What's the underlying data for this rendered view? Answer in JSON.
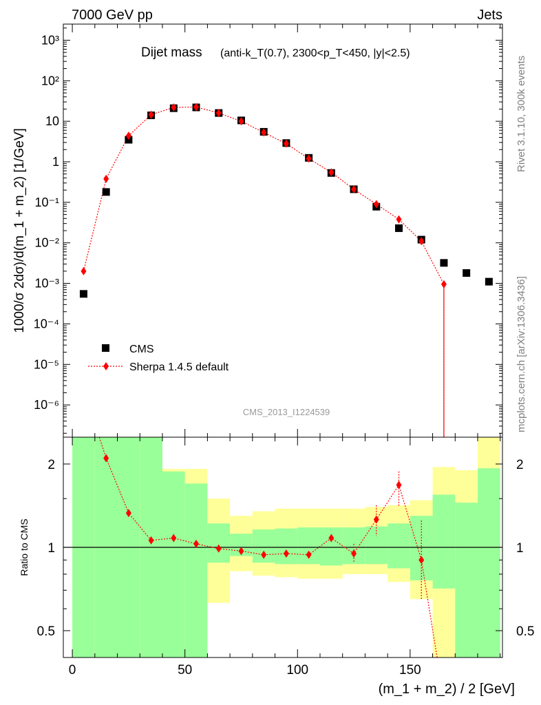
{
  "header": {
    "left": "7000 GeV pp",
    "right": "Jets"
  },
  "side": {
    "rivet": "Rivet 3.1.10,  300k events",
    "mcplots": "mcplots.cern.ch [arXiv:1306.3436]"
  },
  "colors": {
    "cms": "#000000",
    "mc": "#ff0000",
    "band_inner": "#99ff99",
    "band_outer": "#ffff99"
  },
  "chart_data": [
    {
      "type": "scatter",
      "title_main": "Dijet mass",
      "title_sub": "(anti-k_T(0.7), 2300<p_T<450, |y|<2.5)",
      "ylabel": "1000/σ 2dσ)/d(m_1 + m_2) [1/GeV]",
      "watermark": "CMS_2013_I1224539",
      "y_scale": "log",
      "xlim": [
        -4,
        191
      ],
      "ylim": [
        1.6e-07,
        2500
      ],
      "y_ticks": [
        {
          "label": "10³",
          "value": 1000
        },
        {
          "label": "10²",
          "value": 100
        },
        {
          "label": "10",
          "value": 10
        },
        {
          "label": "1",
          "value": 1
        },
        {
          "label": "10⁻¹",
          "value": 0.1
        },
        {
          "label": "10⁻²",
          "value": 0.01
        },
        {
          "label": "10⁻³",
          "value": 0.001
        },
        {
          "label": "10⁻⁴",
          "value": 0.0001
        },
        {
          "label": "10⁻⁵",
          "value": 1e-05
        },
        {
          "label": "10⁻⁶",
          "value": 1e-06
        }
      ],
      "legend_position": "bottom-left",
      "series": [
        {
          "name": "CMS",
          "style": "markers",
          "x": [
            5,
            15,
            25,
            35,
            45,
            55,
            65,
            75,
            85,
            95,
            105,
            115,
            125,
            135,
            145,
            155,
            165,
            175,
            185
          ],
          "y": [
            0.00055,
            0.18,
            3.5,
            14,
            21,
            22,
            16,
            10.5,
            5.5,
            2.9,
            1.25,
            0.53,
            0.21,
            0.078,
            0.023,
            0.012,
            0.0032,
            0.0018,
            0.0011
          ]
        },
        {
          "name": "Sherpa 1.4.5 default",
          "style": "line-diamond",
          "x": [
            5,
            15,
            25,
            35,
            45,
            55,
            65,
            75,
            85,
            95,
            105,
            115,
            125,
            135,
            145,
            155,
            165
          ],
          "y": [
            0.002,
            0.38,
            4.4,
            14.5,
            22,
            22.5,
            16,
            10,
            5.3,
            2.8,
            1.2,
            0.55,
            0.21,
            0.09,
            0.038,
            0.011,
            0.00095
          ]
        }
      ]
    },
    {
      "type": "line",
      "ylabel": "Ratio to CMS",
      "xlabel": "(m_1 + m_2) / 2 [GeV]",
      "y_scale": "log",
      "xlim": [
        -4,
        191
      ],
      "ylim": [
        0.4,
        2.5
      ],
      "x_ticks": [
        0,
        50,
        100,
        150
      ],
      "y_ticks": [
        {
          "label": "0.5",
          "value": 0.5
        },
        {
          "label": "1",
          "value": 1
        },
        {
          "label": "2",
          "value": 2
        }
      ],
      "bins": [
        0,
        10,
        20,
        30,
        40,
        50,
        60,
        70,
        80,
        90,
        100,
        110,
        120,
        130,
        140,
        150,
        160,
        170,
        180,
        190
      ],
      "band_outer": {
        "lo": [
          0.4,
          0.4,
          0.4,
          0.4,
          0.4,
          0.4,
          0.63,
          0.82,
          0.79,
          0.78,
          0.77,
          0.77,
          0.8,
          0.8,
          0.75,
          0.65,
          0.4,
          0.4,
          0.4
        ],
        "hi": [
          2.5,
          2.5,
          2.5,
          2.5,
          1.92,
          1.92,
          1.5,
          1.3,
          1.35,
          1.38,
          1.38,
          1.38,
          1.38,
          1.4,
          1.42,
          1.48,
          1.95,
          1.9,
          2.5
        ]
      },
      "band_inner": {
        "lo": [
          0.4,
          0.4,
          0.4,
          0.4,
          0.4,
          0.4,
          0.88,
          0.93,
          0.88,
          0.87,
          0.87,
          0.86,
          0.87,
          0.87,
          0.84,
          0.76,
          0.71,
          0.4,
          0.4
        ],
        "hi": [
          2.5,
          2.5,
          2.5,
          2.5,
          1.88,
          1.7,
          1.22,
          1.12,
          1.16,
          1.17,
          1.18,
          1.18,
          1.18,
          1.19,
          1.22,
          1.3,
          1.55,
          1.45,
          1.93
        ]
      },
      "series": [
        {
          "name": "Sherpa 1.4.5 default",
          "x": [
            15,
            25,
            35,
            45,
            55,
            65,
            75,
            85,
            95,
            105,
            115,
            125,
            135,
            145,
            155
          ],
          "y": [
            2.1,
            1.33,
            1.06,
            1.08,
            1.03,
            0.99,
            0.97,
            0.94,
            0.95,
            0.94,
            1.08,
            0.95,
            1.26,
            1.68,
            0.9
          ]
        }
      ],
      "reference_line": 1
    }
  ]
}
